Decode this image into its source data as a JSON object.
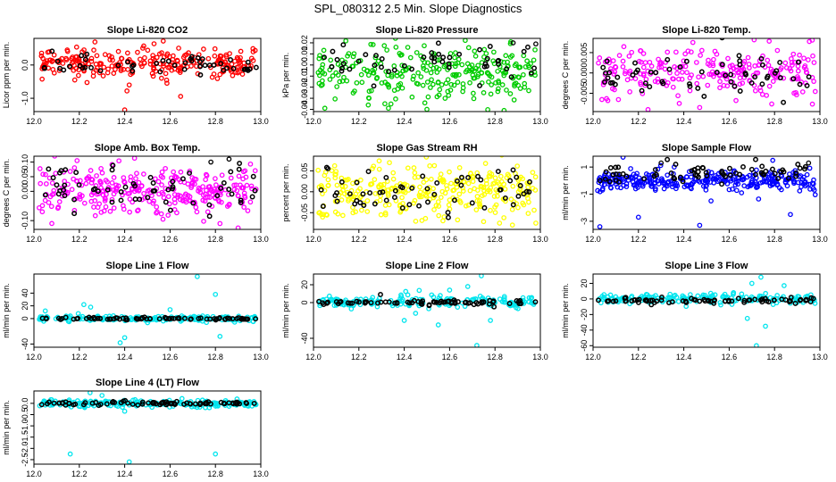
{
  "page_title": "SPL_080312  2.5 Min. Slope Diagnostics",
  "chart_data": [
    {
      "type": "scatter",
      "title": "Slope Li-820 CO2",
      "ylabel": "Licor ppm per min.",
      "xlim": [
        12.0,
        13.0
      ],
      "xticks": [
        "12.0",
        "12.2",
        "12.4",
        "12.6",
        "12.8",
        "13.0"
      ],
      "ylim": [
        -1.4,
        0.8
      ],
      "yticks": [
        {
          "v": -1.0,
          "label": "-1.0"
        },
        {
          "v": 0.0,
          "label": "0.0"
        }
      ],
      "series": [
        {
          "name": "primary",
          "color": "#ff0000",
          "center": 0.05,
          "spread": 0.22,
          "n": 260,
          "outliers": [
            [
              12.4,
              -1.35
            ],
            [
              12.41,
              -0.78
            ],
            [
              12.42,
              -0.6
            ],
            [
              12.18,
              -0.45
            ],
            [
              12.57,
              0.72
            ]
          ]
        },
        {
          "name": "reference",
          "color": "#000000",
          "center": 0.0,
          "spread": 0.15,
          "n": 50,
          "outliers": []
        }
      ]
    },
    {
      "type": "scatter",
      "title": "Slope Li-820 Pressure",
      "ylabel": "kPa per min.",
      "xlim": [
        12.0,
        13.0
      ],
      "xticks": [
        "12.0",
        "12.2",
        "12.4",
        "12.6",
        "12.8",
        "13.0"
      ],
      "ylim": [
        -0.042,
        0.024
      ],
      "yticks": [
        {
          "v": -0.04,
          "label": "-0.04"
        },
        {
          "v": -0.03,
          "label": "-0.03"
        },
        {
          "v": -0.02,
          "label": "-0.02"
        },
        {
          "v": -0.01,
          "label": "-0.01"
        },
        {
          "v": 0.0,
          "label": "0.00"
        },
        {
          "v": 0.01,
          "label": "0.01"
        },
        {
          "v": 0.02,
          "label": "0.02"
        }
      ],
      "series": [
        {
          "name": "primary",
          "color": "#00cc00",
          "center": -0.007,
          "spread": 0.011,
          "n": 280,
          "outliers": [
            [
              12.05,
              -0.039
            ],
            [
              12.5,
              -0.04
            ],
            [
              12.84,
              -0.041
            ],
            [
              12.58,
              -0.03
            ]
          ]
        },
        {
          "name": "reference",
          "color": "#000000",
          "center": 0.005,
          "spread": 0.008,
          "n": 50,
          "outliers": [
            [
              12.88,
              0.02
            ],
            [
              12.98,
              0.019
            ]
          ]
        }
      ]
    },
    {
      "type": "scatter",
      "title": "Slope Li-820 Temp.",
      "ylabel": "degrees C per min.",
      "xlim": [
        12.0,
        13.0
      ],
      "xticks": [
        "12.0",
        "12.2",
        "12.4",
        "12.6",
        "12.8",
        "13.0"
      ],
      "ylim": [
        -0.0095,
        0.0085
      ],
      "yticks": [
        {
          "v": -0.005,
          "label": "-0.005"
        },
        {
          "v": 0.0,
          "label": "0.000"
        },
        {
          "v": 0.005,
          "label": "0.005"
        }
      ],
      "series": [
        {
          "name": "primary",
          "color": "#ff00ff",
          "center": 0.0,
          "spread": 0.003,
          "n": 240,
          "outliers": [
            [
              12.44,
              0.0075
            ],
            [
              12.47,
              -0.0085
            ],
            [
              12.38,
              -0.0075
            ]
          ]
        },
        {
          "name": "reference",
          "color": "#000000",
          "center": 0.0,
          "spread": 0.0025,
          "n": 60,
          "outliers": []
        }
      ]
    },
    {
      "type": "scatter",
      "title": "Slope Amb. Box Temp.",
      "ylabel": "degrees C per min.",
      "xlim": [
        12.0,
        13.0
      ],
      "xticks": [
        "12.0",
        "12.2",
        "12.4",
        "12.6",
        "12.8",
        "13.0"
      ],
      "ylim": [
        -0.13,
        0.12
      ],
      "yticks": [
        {
          "v": -0.1,
          "label": "-0.10"
        },
        {
          "v": 0.0,
          "label": "0.00"
        },
        {
          "v": 0.05,
          "label": "0.05"
        },
        {
          "v": 0.1,
          "label": "0.10"
        }
      ],
      "series": [
        {
          "name": "primary",
          "color": "#ff00ff",
          "center": 0.0,
          "spread": 0.045,
          "n": 300,
          "outliers": [
            [
              12.9,
              -0.125
            ],
            [
              12.82,
              -0.11
            ]
          ]
        },
        {
          "name": "reference",
          "color": "#000000",
          "center": 0.01,
          "spread": 0.04,
          "n": 60,
          "outliers": [
            [
              12.78,
              0.1
            ],
            [
              12.86,
              0.11
            ]
          ]
        }
      ]
    },
    {
      "type": "scatter",
      "title": "Slope Gas Stream RH",
      "ylabel": "percent per min.",
      "xlim": [
        12.0,
        13.0
      ],
      "xticks": [
        "12.0",
        "12.2",
        "12.4",
        "12.6",
        "12.8",
        "13.0"
      ],
      "ylim": [
        -0.09,
        0.085
      ],
      "yticks": [
        {
          "v": -0.05,
          "label": "-0.05"
        },
        {
          "v": 0.0,
          "label": "0.00"
        },
        {
          "v": 0.05,
          "label": "0.05"
        }
      ],
      "series": [
        {
          "name": "primary",
          "color": "#ffff00",
          "center": 0.0,
          "spread": 0.03,
          "n": 300,
          "outliers": [
            [
              12.82,
              -0.075
            ],
            [
              12.98,
              -0.075
            ]
          ]
        },
        {
          "name": "reference",
          "color": "#000000",
          "center": 0.0,
          "spread": 0.025,
          "n": 60,
          "outliers": []
        }
      ]
    },
    {
      "type": "scatter",
      "title": "Slope Sample Flow",
      "ylabel": "ml/min per min.",
      "xlim": [
        12.0,
        13.0
      ],
      "xticks": [
        "12.0",
        "12.2",
        "12.4",
        "12.6",
        "12.8",
        "13.0"
      ],
      "ylim": [
        -3.6,
        1.8
      ],
      "yticks": [
        {
          "v": -3,
          "label": "-3"
        },
        {
          "v": -1,
          "label": "-1"
        },
        {
          "v": 1,
          "label": "1"
        }
      ],
      "series": [
        {
          "name": "primary",
          "color": "#0000ff",
          "center": 0.0,
          "spread": 0.35,
          "n": 300,
          "outliers": [
            [
              12.03,
              -3.4
            ],
            [
              12.2,
              -2.7
            ],
            [
              12.47,
              -3.3
            ],
            [
              12.87,
              -2.5
            ],
            [
              12.52,
              -1.5
            ]
          ]
        },
        {
          "name": "reference",
          "color": "#000000",
          "center": 0.6,
          "spread": 0.35,
          "n": 70,
          "outliers": [
            [
              12.3,
              1.3
            ],
            [
              12.95,
              1.3
            ]
          ]
        }
      ]
    },
    {
      "type": "scatter",
      "title": "Slope Line 1 Flow",
      "ylabel": "ml/min per min.",
      "xlim": [
        12.0,
        13.0
      ],
      "xticks": [
        "12.0",
        "12.2",
        "12.4",
        "12.6",
        "12.8",
        "13.0"
      ],
      "ylim": [
        -45,
        70
      ],
      "yticks": [
        {
          "v": -40,
          "label": "-40"
        },
        {
          "v": 0,
          "label": "0"
        },
        {
          "v": 20,
          "label": "20"
        },
        {
          "v": 40,
          "label": "40"
        }
      ],
      "series": [
        {
          "name": "primary",
          "color": "#00e5ee",
          "center": 0.0,
          "spread": 2.0,
          "n": 180,
          "outliers": [
            [
              12.38,
              -38
            ],
            [
              12.4,
              -30
            ],
            [
              12.72,
              66
            ],
            [
              12.8,
              38
            ],
            [
              12.82,
              -28
            ],
            [
              12.22,
              22
            ],
            [
              12.25,
              18
            ],
            [
              12.05,
              12
            ],
            [
              12.6,
              14
            ]
          ]
        },
        {
          "name": "reference",
          "color": "#000000",
          "center": 0.0,
          "spread": 0.8,
          "n": 80,
          "outliers": []
        }
      ]
    },
    {
      "type": "scatter",
      "title": "Slope Line 2 Flow",
      "ylabel": "ml/min per min.",
      "xlim": [
        12.0,
        13.0
      ],
      "xticks": [
        "12.0",
        "12.2",
        "12.4",
        "12.6",
        "12.8",
        "13.0"
      ],
      "ylim": [
        -50,
        32
      ],
      "yticks": [
        {
          "v": -40,
          "label": "-40"
        },
        {
          "v": 0,
          "label": "0"
        },
        {
          "v": 20,
          "label": "20"
        }
      ],
      "series": [
        {
          "name": "primary",
          "color": "#00e5ee",
          "center": 1.0,
          "spread": 3.0,
          "n": 180,
          "outliers": [
            [
              12.72,
              -48
            ],
            [
              12.74,
              30
            ],
            [
              12.78,
              -20
            ],
            [
              12.68,
              18
            ],
            [
              12.4,
              -20
            ],
            [
              12.45,
              -12
            ],
            [
              12.6,
              14
            ],
            [
              12.55,
              -25
            ]
          ]
        },
        {
          "name": "reference",
          "color": "#000000",
          "center": 0.0,
          "spread": 1.2,
          "n": 80,
          "outliers": []
        }
      ]
    },
    {
      "type": "scatter",
      "title": "Slope Line 3 Flow",
      "ylabel": "ml/min per min.",
      "xlim": [
        12.0,
        13.0
      ],
      "xticks": [
        "12.0",
        "12.2",
        "12.4",
        "12.6",
        "12.8",
        "13.0"
      ],
      "ylim": [
        -62,
        32
      ],
      "yticks": [
        {
          "v": -60,
          "label": "-60"
        },
        {
          "v": -40,
          "label": "-40"
        },
        {
          "v": -20,
          "label": "-20"
        },
        {
          "v": 0,
          "label": "0"
        },
        {
          "v": 20,
          "label": "20"
        }
      ],
      "series": [
        {
          "name": "primary",
          "color": "#00e5ee",
          "center": 0.0,
          "spread": 3.0,
          "n": 180,
          "outliers": [
            [
              12.72,
              -60
            ],
            [
              12.74,
              28
            ],
            [
              12.68,
              -25
            ],
            [
              12.76,
              -35
            ],
            [
              12.7,
              20
            ]
          ]
        },
        {
          "name": "reference",
          "color": "#000000",
          "center": -2.0,
          "spread": 1.5,
          "n": 80,
          "outliers": []
        }
      ]
    },
    {
      "type": "scatter",
      "title": "Slope Line 4 (LT) Flow",
      "ylabel": "ml/min per min.",
      "xlim": [
        12.0,
        13.0
      ],
      "xticks": [
        "12.0",
        "12.2",
        "12.4",
        "12.6",
        "12.8",
        "13.0"
      ],
      "ylim": [
        -2.7,
        0.55
      ],
      "yticks": [
        {
          "v": -2.5,
          "label": "-2.5"
        },
        {
          "v": -2.0,
          "label": "-2.0"
        },
        {
          "v": -1.5,
          "label": "-1.5"
        },
        {
          "v": -1.0,
          "label": "-1.0"
        },
        {
          "v": -0.5,
          "label": "-0.5"
        },
        {
          "v": 0.0,
          "label": "0.0"
        }
      ],
      "series": [
        {
          "name": "primary",
          "color": "#00e5ee",
          "center": 0.0,
          "spread": 0.08,
          "n": 220,
          "outliers": [
            [
              12.16,
              -2.25
            ],
            [
              12.8,
              -2.25
            ],
            [
              12.42,
              -2.6
            ],
            [
              12.3,
              0.35
            ],
            [
              12.4,
              -0.35
            ]
          ]
        },
        {
          "name": "reference",
          "color": "#000000",
          "center": 0.0,
          "spread": 0.04,
          "n": 80,
          "outliers": []
        }
      ]
    }
  ]
}
